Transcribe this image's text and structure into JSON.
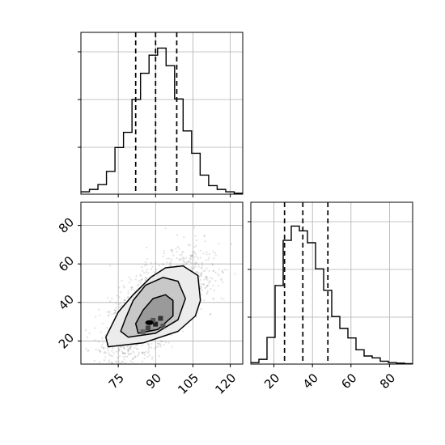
{
  "chart_data": {
    "type": "corner",
    "subplots": [
      {
        "id": "marginal-x",
        "type": "histogram",
        "x_range": [
          60,
          125
        ],
        "x_ticks": [
          75,
          90,
          105,
          120
        ],
        "quantile_lines": [
          82,
          90,
          98.5
        ],
        "step_counts": [
          0.05,
          0.1,
          0.2,
          0.48,
          0.98,
          1.3,
          1.99,
          2.54,
          2.92,
          3.07,
          2.7,
          2.0,
          1.33,
          0.86,
          0.4,
          0.18,
          0.1,
          0.05,
          0.02
        ],
        "grid": true
      },
      {
        "id": "joint",
        "type": "2d-histogram-contour",
        "x_range": [
          60,
          125
        ],
        "y_range": [
          8,
          92
        ],
        "x_ticks": [
          75,
          90,
          105,
          120
        ],
        "y_ticks": [
          20,
          40,
          60,
          80
        ],
        "grid": true
      },
      {
        "id": "marginal-y",
        "type": "histogram",
        "x_range": [
          8,
          92
        ],
        "x_ticks": [
          20,
          40,
          60,
          80
        ],
        "quantile_lines": [
          25.5,
          35,
          48
        ],
        "step_counts": [
          0.03,
          0.1,
          0.56,
          1.65,
          2.6,
          2.9,
          2.8,
          2.55,
          2.0,
          1.55,
          1.0,
          0.75,
          0.55,
          0.3,
          0.17,
          0.13,
          0.06,
          0.03,
          0.02,
          0.01
        ],
        "grid": true
      }
    ]
  }
}
